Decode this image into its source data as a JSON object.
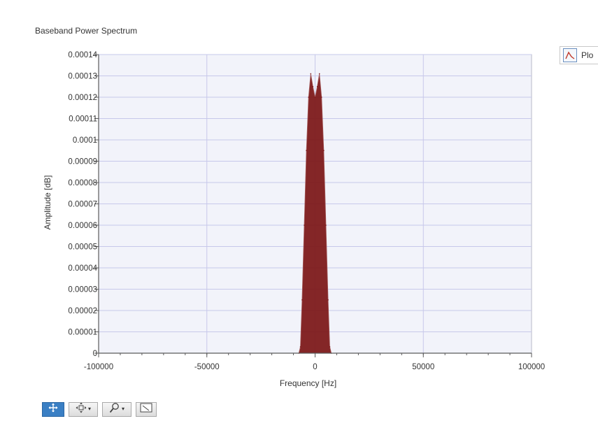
{
  "chart_data": {
    "type": "area",
    "title": "Baseband Power Spectrum",
    "xlabel": "Frequency [Hz]",
    "ylabel": "Amplitude [dB]",
    "xlim": [
      -100000,
      100000
    ],
    "ylim": [
      0,
      0.00014
    ],
    "x_ticks": [
      "-100000",
      "-50000",
      "0",
      "50000",
      "100000"
    ],
    "y_ticks": [
      "0",
      "0.00001",
      "0.00002",
      "0.00003",
      "0.00004",
      "0.00005",
      "0.00006",
      "0.00007",
      "0.00008",
      "0.00009",
      "0.0001",
      "0.00011",
      "0.00012",
      "0.00013",
      "0.00014"
    ],
    "grid": true,
    "legend_position": "top-right",
    "series": [
      {
        "name": "Plo",
        "color": "#7b1515",
        "x": [
          -7500,
          -6800,
          -6000,
          -5000,
          -4000,
          -3000,
          -2000,
          -1000,
          0,
          1000,
          2000,
          3000,
          4000,
          5000,
          6000,
          6800,
          7500
        ],
        "y": [
          0,
          3e-06,
          2.5e-05,
          6e-05,
          9.5e-05,
          0.00012,
          0.000131,
          0.000125,
          0.00012,
          0.000125,
          0.000131,
          0.00012,
          9.5e-05,
          6e-05,
          2.5e-05,
          3e-06,
          0
        ]
      }
    ]
  },
  "legend": {
    "label": "Plo",
    "icon": "line-plot-icon"
  },
  "toolbar": {
    "items": [
      {
        "name": "cursor-tool-button",
        "icon": "cursor-crosshair-icon",
        "active": true,
        "dropdown": false
      },
      {
        "name": "pan-tool-button",
        "icon": "pan-icon",
        "active": false,
        "dropdown": true
      },
      {
        "name": "zoom-tool-button",
        "icon": "zoom-icon",
        "active": false,
        "dropdown": true
      },
      {
        "name": "zoom-region-button",
        "icon": "zoom-region-icon",
        "active": false,
        "dropdown": false
      }
    ]
  },
  "colors": {
    "plot_background": "#f2f3fa",
    "grid": "#c7c8ea",
    "axis": "#5a5a5a",
    "series": "#7b1515"
  }
}
